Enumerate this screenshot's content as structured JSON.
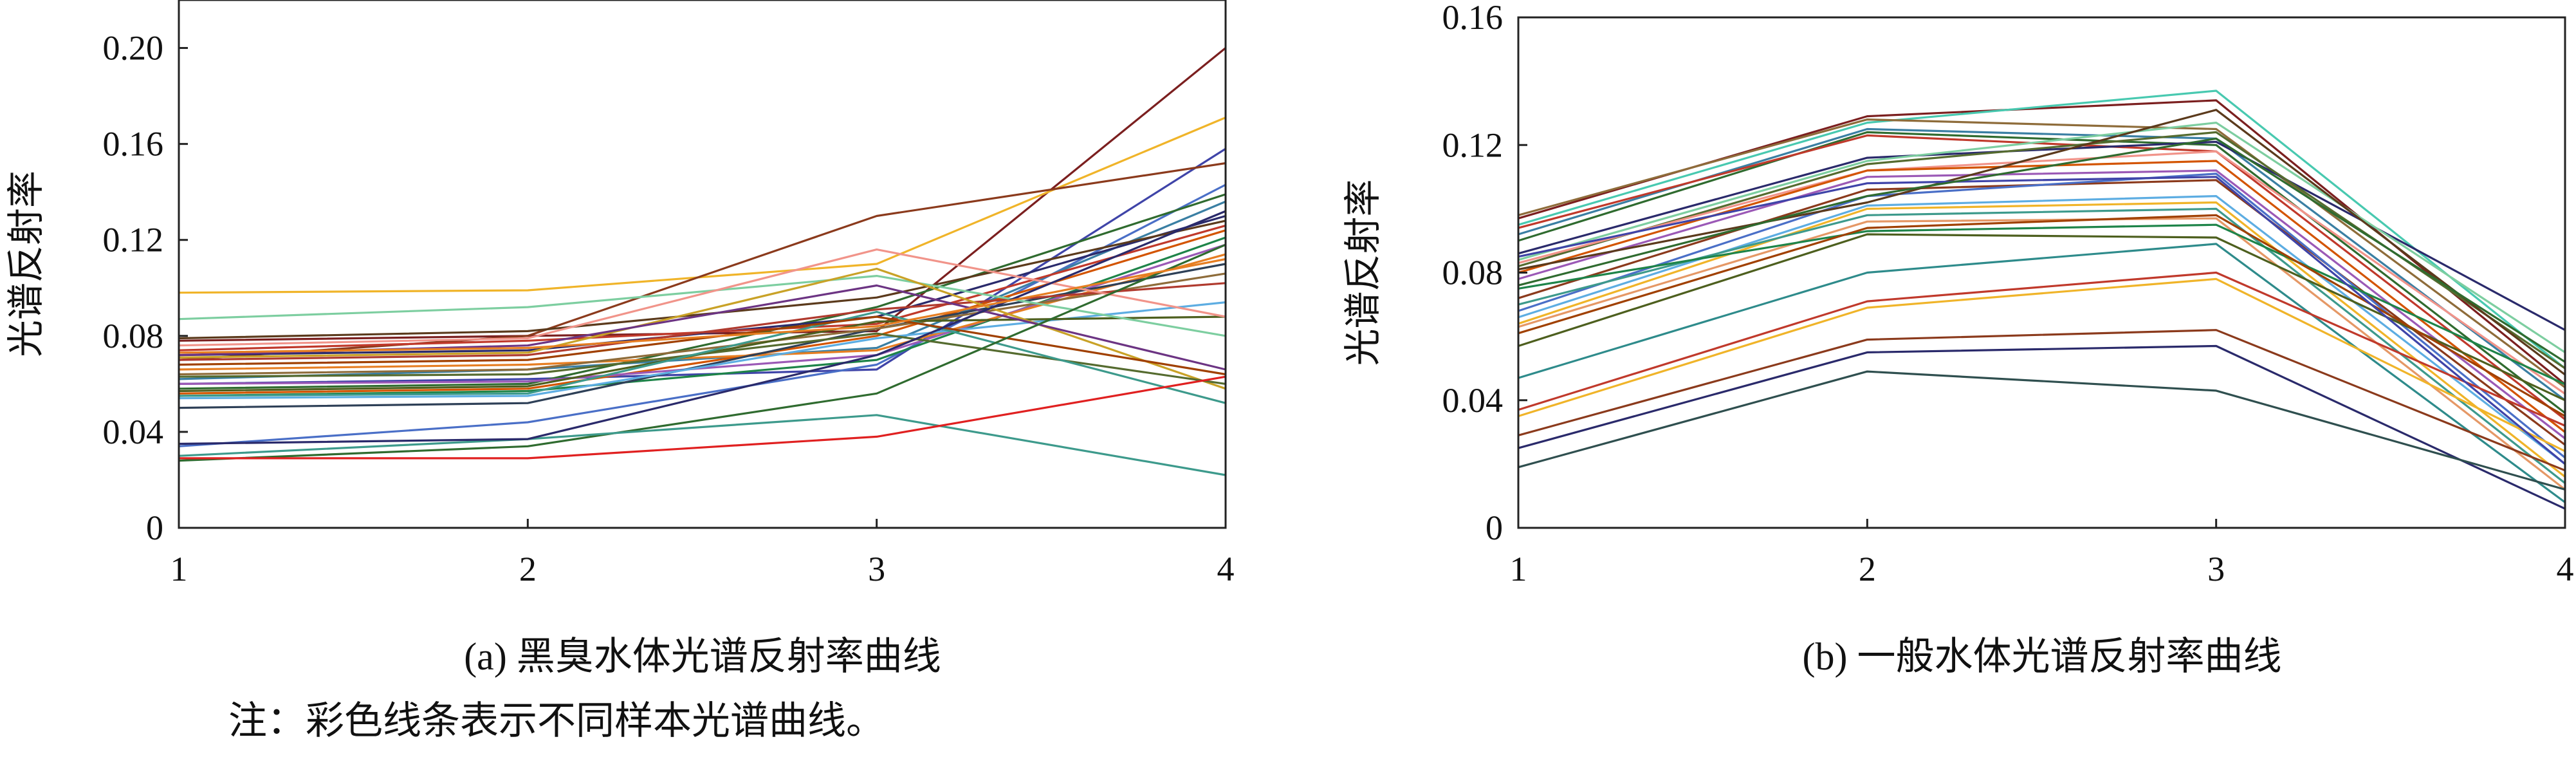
{
  "chart_data": [
    {
      "type": "line",
      "caption": "(a) 黑臭水体光谱反射率曲线",
      "ylabel": "光谱反射率",
      "xlabel": "",
      "x": [
        1,
        2,
        3,
        4
      ],
      "x_ticks": [
        "1",
        "2",
        "3",
        "4"
      ],
      "ylim": [
        0,
        0.22
      ],
      "y_ticks": [
        "0",
        "0.04",
        "0.08",
        "0.12",
        "0.16",
        "0.20"
      ],
      "y_tick_values": [
        0,
        0.04,
        0.08,
        0.12,
        0.16,
        0.2
      ],
      "grid": false,
      "series": [
        {
          "color": "#7b1f1f",
          "values": [
            0.078,
            0.08,
            0.082,
            0.2
          ]
        },
        {
          "color": "#f0b429",
          "values": [
            0.098,
            0.099,
            0.11,
            0.171
          ]
        },
        {
          "color": "#3f44a8",
          "values": [
            0.06,
            0.062,
            0.066,
            0.158
          ]
        },
        {
          "color": "#8b3a1c",
          "values": [
            0.07,
            0.08,
            0.13,
            0.152
          ]
        },
        {
          "color": "#4a6fc7",
          "values": [
            0.034,
            0.044,
            0.068,
            0.143
          ]
        },
        {
          "color": "#2f6b2f",
          "values": [
            0.058,
            0.06,
            0.092,
            0.139
          ]
        },
        {
          "color": "#3a7fa3",
          "values": [
            0.062,
            0.066,
            0.075,
            0.136
          ]
        },
        {
          "color": "#2a2a6b",
          "values": [
            0.072,
            0.074,
            0.088,
            0.13
          ]
        },
        {
          "color": "#c0392b",
          "values": [
            0.074,
            0.078,
            0.085,
            0.126
          ]
        },
        {
          "color": "#d35400",
          "values": [
            0.056,
            0.058,
            0.08,
            0.124
          ]
        },
        {
          "color": "#5b3a1c",
          "values": [
            0.079,
            0.082,
            0.096,
            0.128
          ]
        },
        {
          "color": "#1e8449",
          "values": [
            0.055,
            0.057,
            0.07,
            0.121
          ]
        },
        {
          "color": "#9b59b6",
          "values": [
            0.06,
            0.061,
            0.072,
            0.118
          ]
        },
        {
          "color": "#e67e22",
          "values": [
            0.066,
            0.068,
            0.074,
            0.114
          ]
        },
        {
          "color": "#2e4057",
          "values": [
            0.05,
            0.052,
            0.083,
            0.11
          ]
        },
        {
          "color": "#8e6c3a",
          "values": [
            0.064,
            0.066,
            0.083,
            0.106
          ]
        },
        {
          "color": "#b03a2e",
          "values": [
            0.07,
            0.072,
            0.091,
            0.102
          ]
        },
        {
          "color": "#5dade2",
          "values": [
            0.054,
            0.055,
            0.079,
            0.094
          ]
        },
        {
          "color": "#4d5f1e",
          "values": [
            0.057,
            0.059,
            0.086,
            0.088
          ]
        },
        {
          "color": "#7dcea0",
          "values": [
            0.087,
            0.092,
            0.105,
            0.08
          ]
        },
        {
          "color": "#f1948a",
          "values": [
            0.076,
            0.079,
            0.116,
            0.088
          ]
        },
        {
          "color": "#c9a227",
          "values": [
            0.071,
            0.073,
            0.108,
            0.058
          ]
        },
        {
          "color": "#556b2f",
          "values": [
            0.063,
            0.064,
            0.081,
            0.06
          ]
        },
        {
          "color": "#3d9a8c",
          "values": [
            0.055,
            0.056,
            0.09,
            0.052
          ]
        },
        {
          "color": "#6c3483",
          "values": [
            0.072,
            0.076,
            0.101,
            0.066
          ]
        },
        {
          "color": "#a04000",
          "values": [
            0.068,
            0.07,
            0.088,
            0.064
          ]
        },
        {
          "color": "#2f6b2f",
          "values": [
            0.028,
            0.034,
            0.056,
            0.118
          ]
        },
        {
          "color": "#3d9a8c",
          "values": [
            0.03,
            0.037,
            0.047,
            0.022
          ]
        },
        {
          "color": "#e02020",
          "values": [
            0.029,
            0.029,
            0.038,
            0.063
          ]
        },
        {
          "color": "#2a2a6b",
          "values": [
            0.035,
            0.037,
            0.072,
            0.132
          ]
        },
        {
          "color": "#e67e22",
          "values": [
            0.073,
            0.075,
            0.084,
            0.112
          ]
        }
      ]
    },
    {
      "type": "line",
      "caption": "(b) 一般水体光谱反射率曲线",
      "ylabel": "光谱反射率",
      "xlabel": "",
      "x": [
        1,
        2,
        3,
        4
      ],
      "x_ticks": [
        "1",
        "2",
        "3",
        "4"
      ],
      "ylim": [
        0,
        0.16
      ],
      "y_ticks": [
        "0",
        "0.04",
        "0.08",
        "0.12",
        "0.16"
      ],
      "y_tick_values": [
        0,
        0.04,
        0.08,
        0.12,
        0.16
      ],
      "grid": false,
      "series": [
        {
          "color": "#7b1f1f",
          "values": [
            0.097,
            0.129,
            0.134,
            0.045
          ]
        },
        {
          "color": "#48c9b0",
          "values": [
            0.095,
            0.127,
            0.137,
            0.05
          ]
        },
        {
          "color": "#8e6c3a",
          "values": [
            0.098,
            0.128,
            0.125,
            0.044
          ]
        },
        {
          "color": "#3a7fa3",
          "values": [
            0.092,
            0.125,
            0.122,
            0.04
          ]
        },
        {
          "color": "#2f6b2f",
          "values": [
            0.09,
            0.124,
            0.12,
            0.036
          ]
        },
        {
          "color": "#c0392b",
          "values": [
            0.094,
            0.123,
            0.118,
            0.034
          ]
        },
        {
          "color": "#2a2a6b",
          "values": [
            0.086,
            0.116,
            0.121,
            0.062
          ]
        },
        {
          "color": "#7dcea0",
          "values": [
            0.084,
            0.115,
            0.127,
            0.055
          ]
        },
        {
          "color": "#556b2f",
          "values": [
            0.082,
            0.114,
            0.124,
            0.05
          ]
        },
        {
          "color": "#f1948a",
          "values": [
            0.083,
            0.112,
            0.118,
            0.042
          ]
        },
        {
          "color": "#d35400",
          "values": [
            0.08,
            0.112,
            0.115,
            0.03
          ]
        },
        {
          "color": "#9b59b6",
          "values": [
            0.078,
            0.11,
            0.112,
            0.028
          ]
        },
        {
          "color": "#8b3a1c",
          "values": [
            0.072,
            0.106,
            0.109,
            0.026
          ]
        },
        {
          "color": "#4a6fc7",
          "values": [
            0.068,
            0.104,
            0.111,
            0.022
          ]
        },
        {
          "color": "#5dade2",
          "values": [
            0.066,
            0.101,
            0.104,
            0.02
          ]
        },
        {
          "color": "#f0b429",
          "values": [
            0.064,
            0.1,
            0.102,
            0.016
          ]
        },
        {
          "color": "#3d9a8c",
          "values": [
            0.07,
            0.098,
            0.1,
            0.014
          ]
        },
        {
          "color": "#e59866",
          "values": [
            0.063,
            0.096,
            0.097,
            0.012
          ]
        },
        {
          "color": "#1e8449",
          "values": [
            0.075,
            0.093,
            0.095,
            0.045
          ]
        },
        {
          "color": "#4d5f1e",
          "values": [
            0.057,
            0.092,
            0.091,
            0.04
          ]
        },
        {
          "color": "#a04000",
          "values": [
            0.061,
            0.094,
            0.098,
            0.035
          ]
        },
        {
          "color": "#2e8b8b",
          "values": [
            0.047,
            0.08,
            0.089,
            0.008
          ]
        },
        {
          "color": "#c0392b",
          "values": [
            0.037,
            0.071,
            0.08,
            0.032
          ]
        },
        {
          "color": "#f0b429",
          "values": [
            0.035,
            0.069,
            0.078,
            0.024
          ]
        },
        {
          "color": "#8b3a1c",
          "values": [
            0.029,
            0.059,
            0.062,
            0.018
          ]
        },
        {
          "color": "#2a2a6b",
          "values": [
            0.025,
            0.055,
            0.057,
            0.006
          ]
        },
        {
          "color": "#2f4f4f",
          "values": [
            0.019,
            0.049,
            0.043,
            0.012
          ]
        },
        {
          "color": "#5b3a1c",
          "values": [
            0.081,
            0.102,
            0.131,
            0.048
          ]
        },
        {
          "color": "#3f44a8",
          "values": [
            0.085,
            0.108,
            0.11,
            0.02
          ]
        },
        {
          "color": "#2f6b2f",
          "values": [
            0.076,
            0.104,
            0.122,
            0.052
          ]
        }
      ]
    }
  ],
  "note": "注：彩色线条表示不同样本光谱曲线。"
}
